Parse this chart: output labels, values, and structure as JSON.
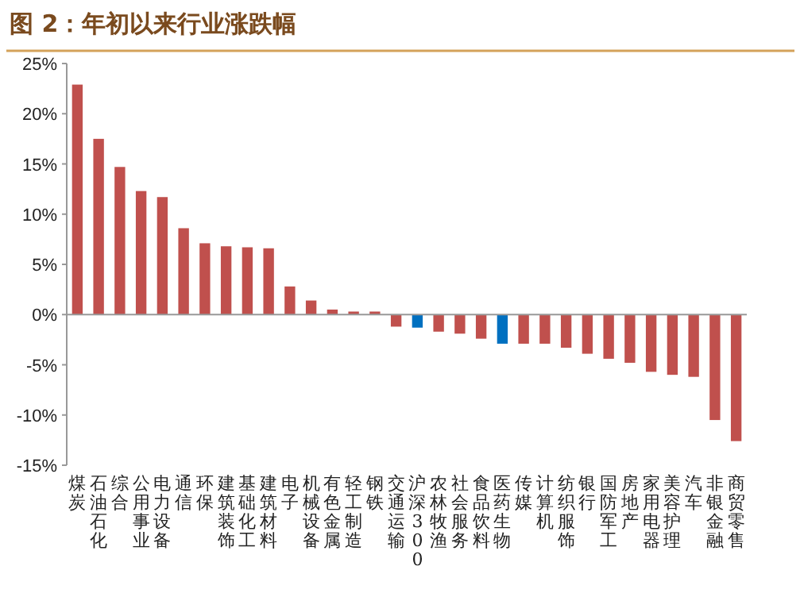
{
  "chart_data": {
    "type": "bar",
    "title": "图 2：年初以来行业涨跌幅",
    "categories": [
      "煤炭",
      "石油石化",
      "综合",
      "公用事业",
      "电力设备",
      "通信",
      "环保",
      "建筑装饰",
      "基础化工",
      "建筑材料",
      "电子",
      "机械设备",
      "有色金属",
      "轻工制造",
      "钢铁",
      "交通运输",
      "沪深300",
      "农林牧渔",
      "社会服务",
      "食品饮料",
      "医药生物",
      "传媒",
      "计算机",
      "纺织服饰",
      "银行",
      "国防军工",
      "房地产",
      "家用电器",
      "美容护理",
      "汽车",
      "非银金融",
      "商贸零售"
    ],
    "values": [
      22.9,
      17.5,
      14.7,
      12.3,
      11.7,
      8.6,
      7.1,
      6.8,
      6.7,
      6.6,
      2.8,
      1.4,
      0.5,
      0.3,
      0.3,
      -1.2,
      -1.3,
      -1.7,
      -1.9,
      -2.4,
      -2.9,
      -2.9,
      -2.9,
      -3.3,
      -3.9,
      -4.4,
      -4.8,
      -5.7,
      -6.0,
      -6.2,
      -10.5,
      -12.6
    ],
    "colors": [
      "#c0504d",
      "#c0504d",
      "#c0504d",
      "#c0504d",
      "#c0504d",
      "#c0504d",
      "#c0504d",
      "#c0504d",
      "#c0504d",
      "#c0504d",
      "#c0504d",
      "#c0504d",
      "#c0504d",
      "#c0504d",
      "#c0504d",
      "#c0504d",
      "#0070c0",
      "#c0504d",
      "#c0504d",
      "#c0504d",
      "#0070c0",
      "#c0504d",
      "#c0504d",
      "#c0504d",
      "#c0504d",
      "#c0504d",
      "#c0504d",
      "#c0504d",
      "#c0504d",
      "#c0504d",
      "#c0504d",
      "#c0504d"
    ],
    "ylim": [
      -15,
      25
    ],
    "yticks": [
      {
        "value": -15,
        "label": "-15%"
      },
      {
        "value": -10,
        "label": "-10%"
      },
      {
        "value": -5,
        "label": "-5%"
      },
      {
        "value": 0,
        "label": "0%"
      },
      {
        "value": 5,
        "label": "5%"
      },
      {
        "value": 10,
        "label": "10%"
      },
      {
        "value": 15,
        "label": "15%"
      },
      {
        "value": 20,
        "label": "20%"
      },
      {
        "value": 25,
        "label": "25%"
      }
    ]
  }
}
